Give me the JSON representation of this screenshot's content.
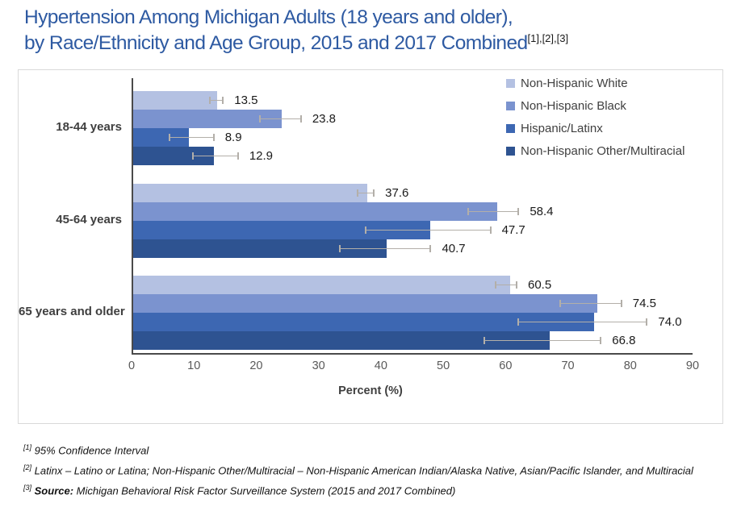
{
  "title": {
    "line1": "Hypertension Among Michigan Adults (18 years and older),",
    "line2": "by Race/Ethnicity and Age Group, 2015 and 2017 Combined",
    "superscript": "[1],[2],[3]"
  },
  "chart_data": {
    "type": "bar",
    "orientation": "horizontal",
    "title": "Hypertension Among Michigan Adults (18 years and older), by Race/Ethnicity and Age Group, 2015 and 2017 Combined",
    "categories": [
      "18-44 years",
      "45-64 years",
      "65 years and older"
    ],
    "series": [
      {
        "name": "Non-Hispanic White",
        "color": "#b4c1e2",
        "values": [
          13.5,
          37.6,
          60.5
        ],
        "ci_low": [
          12.4,
          36.1,
          58.3
        ],
        "ci_high": [
          14.8,
          39.0,
          61.9
        ]
      },
      {
        "name": "Non-Hispanic Black",
        "color": "#7b93cf",
        "values": [
          23.8,
          58.4,
          74.5
        ],
        "ci_low": [
          20.4,
          53.9,
          68.6
        ],
        "ci_high": [
          27.3,
          62.2,
          78.7
        ]
      },
      {
        "name": "Hispanic/Latinx",
        "color": "#3d67b2",
        "values": [
          8.9,
          47.7,
          74.0
        ],
        "ci_low": [
          6.0,
          37.4,
          61.9
        ],
        "ci_high": [
          13.3,
          57.7,
          82.8
        ]
      },
      {
        "name": "Non-Hispanic Other/Multiracial",
        "color": "#2e5391",
        "values": [
          12.9,
          40.7,
          66.8
        ],
        "ci_low": [
          9.7,
          33.3,
          56.4
        ],
        "ci_high": [
          17.2,
          48.1,
          75.4
        ]
      }
    ],
    "xlabel": "Percent (%)",
    "xlim": [
      0,
      90
    ],
    "x_ticks": [
      0,
      10,
      20,
      30,
      40,
      50,
      60,
      70,
      80,
      90
    ],
    "error_bars": "95% Confidence Interval",
    "legend_position": "top-right",
    "grid": false,
    "value_label_decimals": 1
  },
  "footnotes": [
    {
      "sup": "[1]",
      "text": "95% Confidence Interval"
    },
    {
      "sup": "[2]",
      "text": "Latinx – Latino or Latina; Non-Hispanic Other/Multiracial – Non-Hispanic American Indian/Alaska Native, Asian/Pacific Islander, and Multiracial"
    },
    {
      "sup": "[3]",
      "bold_prefix": "Source:",
      "text": "Michigan Behavioral Risk Factor Surveillance System (2015 and 2017 Combined)"
    }
  ],
  "colors": {
    "title_text": "#2e5aa2",
    "axis_line": "#4a4a4a",
    "tick_text": "#595959",
    "category_text": "#3f3f3f",
    "error_bar": "#b3afa9",
    "panel_border": "#d9d9d9"
  }
}
